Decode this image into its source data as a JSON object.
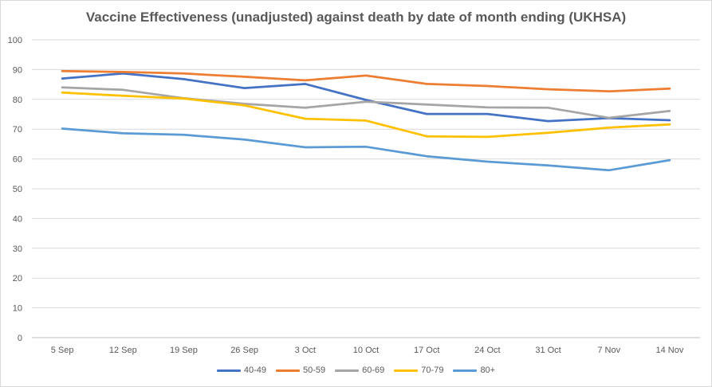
{
  "chart_data": {
    "type": "line",
    "title": "Vaccine Effectiveness (unadjusted) against death by date of month ending (UKHSA)",
    "xlabel": "",
    "ylabel": "",
    "ylim": [
      0,
      100
    ],
    "yticks": [
      "0",
      "10",
      "20",
      "30",
      "40",
      "50",
      "60",
      "70",
      "80",
      "90",
      "100"
    ],
    "grid": true,
    "legend_position": "bottom",
    "categories": [
      "5 Sep",
      "12 Sep",
      "19 Sep",
      "26 Sep",
      "3 Oct",
      "10 Oct",
      "17 Oct",
      "24 Oct",
      "31 Oct",
      "7 Nov",
      "14 Nov"
    ],
    "series": [
      {
        "name": "40-49",
        "color": "#4472c4",
        "values": [
          87,
          88.7,
          86.8,
          83.8,
          85.2,
          79.8,
          75.1,
          75.1,
          72.7,
          73.7,
          73
        ]
      },
      {
        "name": "50-59",
        "color": "#ed7d31",
        "values": [
          89.5,
          89.2,
          88.7,
          87.6,
          86.4,
          88,
          85.2,
          84.5,
          83.4,
          82.7,
          83.6
        ]
      },
      {
        "name": "60-69",
        "color": "#a5a5a5",
        "values": [
          84,
          83.2,
          80.4,
          78.5,
          77.2,
          79.2,
          78.3,
          77.3,
          77.2,
          73.8,
          76.1
        ]
      },
      {
        "name": "70-79",
        "color": "#ffc000",
        "values": [
          82.3,
          81.2,
          80.3,
          78,
          73.5,
          72.9,
          67.6,
          67.4,
          68.8,
          70.5,
          71.6
        ]
      },
      {
        "name": "80+",
        "color": "#5b9bd5",
        "values": [
          70.2,
          68.6,
          68.1,
          66.5,
          63.9,
          64.1,
          60.9,
          59.1,
          57.8,
          56.2,
          59.6
        ]
      }
    ]
  }
}
